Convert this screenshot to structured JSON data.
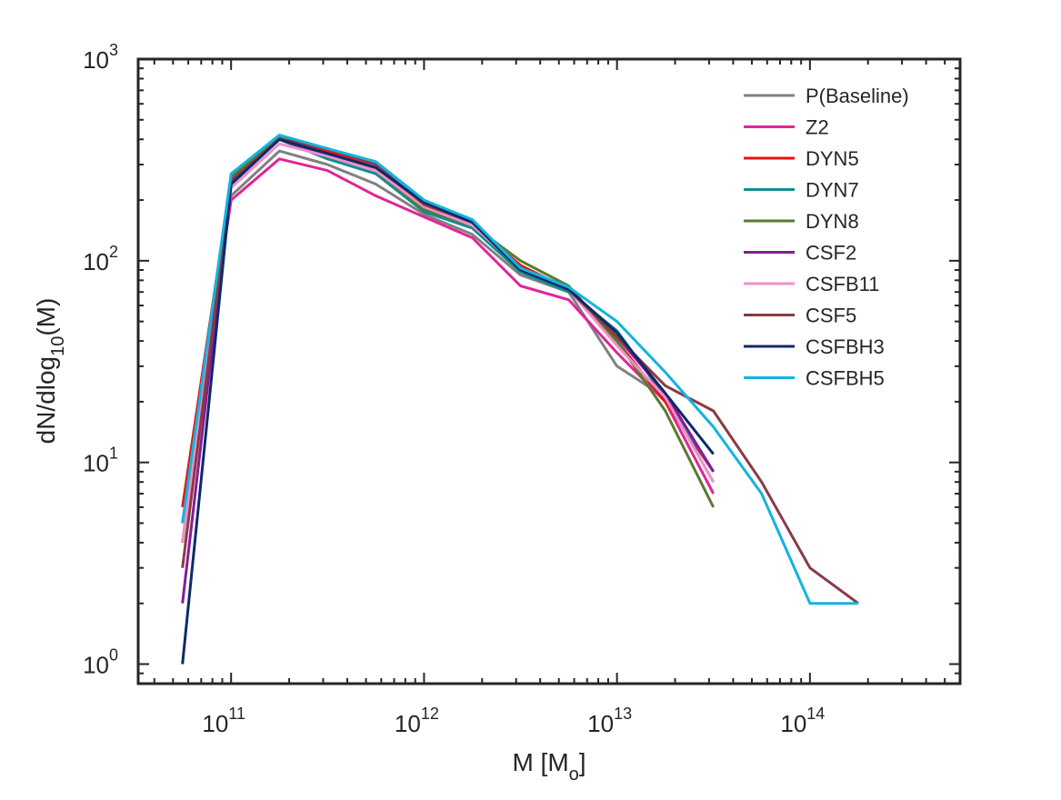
{
  "chart_data": {
    "type": "line",
    "x_scale": "log",
    "y_scale": "log",
    "xlim": [
      33000000000.0,
      600000000000000.0
    ],
    "ylim": [
      0.8,
      1000
    ],
    "xlabel": {
      "base": "M [M",
      "sub": "o",
      "end": "]"
    },
    "ylabel": {
      "base": "dN/dlog",
      "sub": "10",
      "end": "(M)"
    },
    "x_ticks": [
      {
        "value": 100000000000.0,
        "base": "10",
        "exp": "11"
      },
      {
        "value": 1000000000000.0,
        "base": "10",
        "exp": "12"
      },
      {
        "value": 10000000000000.0,
        "base": "10",
        "exp": "13"
      },
      {
        "value": 100000000000000.0,
        "base": "10",
        "exp": "14"
      }
    ],
    "y_ticks": [
      {
        "value": 1,
        "base": "10",
        "exp": "0"
      },
      {
        "value": 10,
        "base": "10",
        "exp": "1"
      },
      {
        "value": 100,
        "base": "10",
        "exp": "2"
      },
      {
        "value": 1000,
        "base": "10",
        "exp": "3"
      }
    ],
    "legend_position": "top-right",
    "grid": false,
    "series": [
      {
        "name": "P(Baseline)",
        "color": "#808080",
        "x": [
          56000000000.0,
          100000000000.0,
          178000000000.0,
          316000000000.0,
          562000000000.0,
          1000000000000.0,
          1780000000000.0,
          3160000000000.0,
          5620000000000.0,
          10000000000000.0,
          17800000000000.0,
          31600000000000.0
        ],
        "y": [
          5,
          210,
          350,
          300,
          240,
          170,
          135,
          85,
          70,
          30,
          21,
          8
        ]
      },
      {
        "name": "Z2",
        "color": "#e0259a",
        "x": [
          56000000000.0,
          100000000000.0,
          178000000000.0,
          316000000000.0,
          562000000000.0,
          1000000000000.0,
          1780000000000.0,
          3160000000000.0,
          5620000000000.0,
          10000000000000.0,
          17800000000000.0,
          31600000000000.0
        ],
        "y": [
          5,
          200,
          320,
          280,
          210,
          165,
          130,
          75,
          64,
          35,
          20,
          7
        ]
      },
      {
        "name": "DYN5",
        "color": "#e8140f",
        "x": [
          56000000000.0,
          100000000000.0,
          178000000000.0,
          316000000000.0,
          562000000000.0,
          1000000000000.0,
          1780000000000.0,
          3160000000000.0,
          5620000000000.0,
          10000000000000.0,
          17800000000000.0,
          31600000000000.0
        ],
        "y": [
          6,
          250,
          410,
          350,
          290,
          185,
          150,
          95,
          72,
          40,
          20,
          9
        ]
      },
      {
        "name": "DYN7",
        "color": "#138d8d",
        "x": [
          56000000000.0,
          100000000000.0,
          178000000000.0,
          316000000000.0,
          562000000000.0,
          1000000000000.0,
          1780000000000.0,
          3160000000000.0,
          5620000000000.0,
          10000000000000.0,
          17800000000000.0,
          31600000000000.0
        ],
        "y": [
          4,
          245,
          400,
          320,
          270,
          175,
          145,
          88,
          70,
          45,
          21,
          9
        ]
      },
      {
        "name": "DYN8",
        "color": "#5a7a2e",
        "x": [
          56000000000.0,
          100000000000.0,
          178000000000.0,
          316000000000.0,
          562000000000.0,
          1000000000000.0,
          1780000000000.0,
          3160000000000.0,
          5620000000000.0,
          10000000000000.0,
          17800000000000.0,
          31600000000000.0
        ],
        "y": [
          4,
          260,
          410,
          330,
          280,
          180,
          150,
          100,
          75,
          40,
          18,
          6
        ]
      },
      {
        "name": "CSF2",
        "color": "#8a1a9a",
        "x": [
          56000000000.0,
          100000000000.0,
          178000000000.0,
          316000000000.0,
          562000000000.0,
          1000000000000.0,
          1780000000000.0,
          3160000000000.0,
          5620000000000.0,
          10000000000000.0,
          17800000000000.0,
          31600000000000.0
        ],
        "y": [
          2,
          240,
          400,
          330,
          290,
          190,
          155,
          92,
          72,
          42,
          22,
          9
        ]
      },
      {
        "name": "CSFB11",
        "color": "#f090c8",
        "x": [
          56000000000.0,
          100000000000.0,
          178000000000.0,
          316000000000.0,
          562000000000.0,
          1000000000000.0,
          1780000000000.0,
          3160000000000.0,
          5620000000000.0,
          10000000000000.0,
          17800000000000.0,
          31600000000000.0
        ],
        "y": [
          4,
          230,
          380,
          330,
          280,
          185,
          150,
          92,
          72,
          38,
          21,
          8
        ]
      },
      {
        "name": "CSF5",
        "color": "#8a3a42",
        "x": [
          56000000000.0,
          100000000000.0,
          178000000000.0,
          316000000000.0,
          562000000000.0,
          1000000000000.0,
          1780000000000.0,
          3160000000000.0,
          5620000000000.0,
          10000000000000.0,
          17800000000000.0,
          31600000000000.0,
          56200000000000.0,
          100000000000000.0,
          178000000000000.0
        ],
        "y": [
          3,
          250,
          400,
          360,
          300,
          190,
          155,
          92,
          72,
          42,
          24,
          18,
          8,
          3,
          2
        ]
      },
      {
        "name": "CSFBH3",
        "color": "#0c2a6a",
        "x": [
          56000000000.0,
          100000000000.0,
          178000000000.0,
          316000000000.0,
          562000000000.0,
          1000000000000.0,
          1780000000000.0,
          3160000000000.0,
          5620000000000.0,
          10000000000000.0,
          17800000000000.0,
          31600000000000.0
        ],
        "y": [
          1,
          240,
          400,
          340,
          290,
          195,
          155,
          90,
          72,
          44,
          22,
          11
        ]
      },
      {
        "name": "CSFBH5",
        "color": "#12b4e0",
        "x": [
          56000000000.0,
          100000000000.0,
          178000000000.0,
          316000000000.0,
          562000000000.0,
          1000000000000.0,
          1780000000000.0,
          3160000000000.0,
          5620000000000.0,
          10000000000000.0,
          17800000000000.0,
          31600000000000.0,
          56200000000000.0,
          100000000000000.0,
          178000000000000.0
        ],
        "y": [
          5,
          270,
          420,
          360,
          310,
          200,
          160,
          92,
          74,
          50,
          28,
          15,
          7,
          2,
          2
        ]
      }
    ]
  }
}
